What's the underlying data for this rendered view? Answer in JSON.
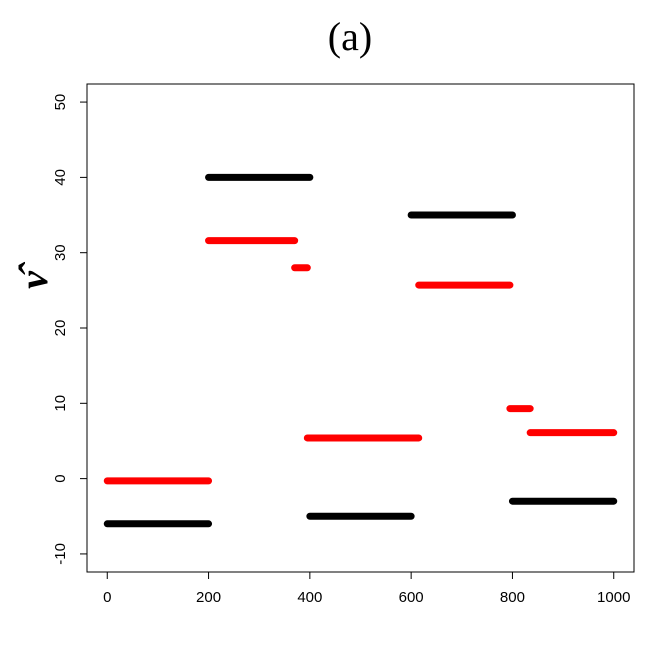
{
  "chart_data": {
    "type": "segments",
    "title": "(a)",
    "y_label": "ν̂",
    "xlim": [
      -40,
      1040
    ],
    "ylim": [
      -12.4,
      52.4
    ],
    "xticks": [
      0,
      200,
      400,
      600,
      800,
      1000
    ],
    "yticks": [
      -10,
      0,
      10,
      20,
      30,
      40,
      50
    ],
    "series": [
      {
        "color": "#000000",
        "x": [
          0,
          200,
          null,
          200,
          400,
          null,
          400,
          600,
          null,
          600,
          800,
          null,
          800,
          1000
        ],
        "values": [
          -6,
          -6,
          null,
          40,
          40,
          null,
          -5,
          -5,
          null,
          35,
          35,
          null,
          -3,
          -3
        ]
      },
      {
        "color": "#ff0000",
        "x": [
          0,
          200,
          null,
          200,
          370,
          null,
          370,
          395,
          null,
          395,
          615,
          null,
          615,
          795,
          null,
          795,
          835,
          null,
          835,
          1000
        ],
        "values": [
          -0.3,
          -0.3,
          null,
          31.6,
          31.6,
          null,
          28,
          28,
          null,
          5.4,
          5.4,
          null,
          25.7,
          25.7,
          null,
          9.3,
          9.3,
          null,
          6.1,
          6.1
        ]
      }
    ]
  }
}
